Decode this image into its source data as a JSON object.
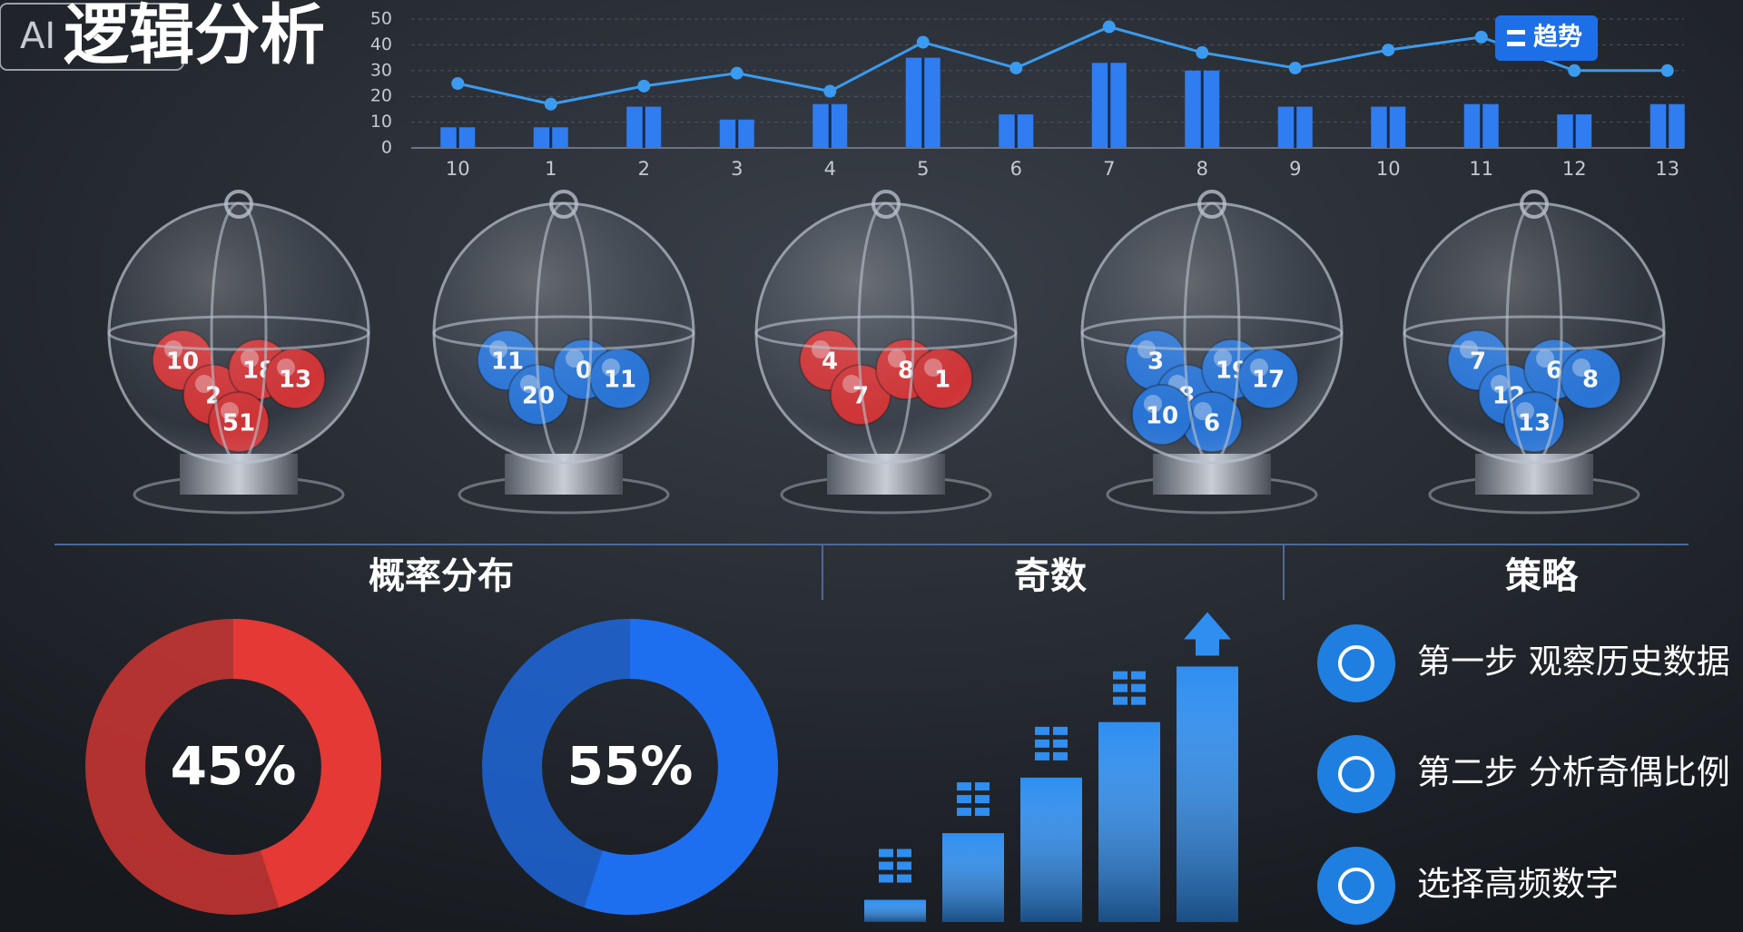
{
  "header": {
    "title": "逻辑分析",
    "watermark": "AI"
  },
  "chart_data": [
    {
      "type": "combo",
      "categories": [
        "10",
        "1",
        "2",
        "3",
        "4",
        "5",
        "6",
        "7",
        "8",
        "9",
        "10",
        "11",
        "12",
        "13"
      ],
      "series": [
        {
          "type": "bar",
          "color": "#2f7df0",
          "values": [
            8,
            8,
            16,
            11,
            17,
            35,
            13,
            33,
            30,
            16,
            16,
            17,
            13,
            17
          ]
        },
        {
          "type": "line",
          "name": "趋势",
          "color": "#3a9bf0",
          "values": [
            25,
            17,
            24,
            29,
            22,
            41,
            31,
            47,
            37,
            31,
            38,
            43,
            30,
            30
          ]
        }
      ],
      "ylim": [
        0,
        50
      ],
      "yticks": [
        0,
        10,
        20,
        30,
        40,
        50
      ],
      "grid": true,
      "legend": "top-right"
    },
    {
      "type": "donut",
      "values": [
        45
      ],
      "value_labels": [
        "45%"
      ],
      "color": "#e53935"
    },
    {
      "type": "donut",
      "values": [
        55
      ],
      "value_labels": [
        "55%"
      ],
      "color": "#1e6ff0"
    },
    {
      "type": "bar",
      "values": [
        8,
        32,
        52,
        72,
        92
      ],
      "ylim": [
        0,
        100
      ],
      "color": "#2f8ef0"
    }
  ],
  "globes": [
    {
      "color": "#d42a2a",
      "balls": [
        "10",
        "2",
        "18",
        "13",
        "51"
      ]
    },
    {
      "color": "#1f6fd6",
      "balls": [
        "11",
        "20",
        "0",
        "11"
      ]
    },
    {
      "color": "#d42a2a",
      "balls": [
        "4",
        "7",
        "8",
        "1"
      ]
    },
    {
      "color": "#1f6fd6",
      "balls": [
        "3",
        "8",
        "19",
        "17",
        "6",
        "10"
      ]
    },
    {
      "color": "#1f6fd6",
      "balls": [
        "7",
        "12",
        "6",
        "8",
        "13"
      ]
    }
  ],
  "sections": [
    "概率分布",
    "奇数",
    "策略"
  ],
  "strategy": [
    "第一步 观察历史数据",
    "第二步 分析奇偶比例",
    "选择高频数字"
  ]
}
